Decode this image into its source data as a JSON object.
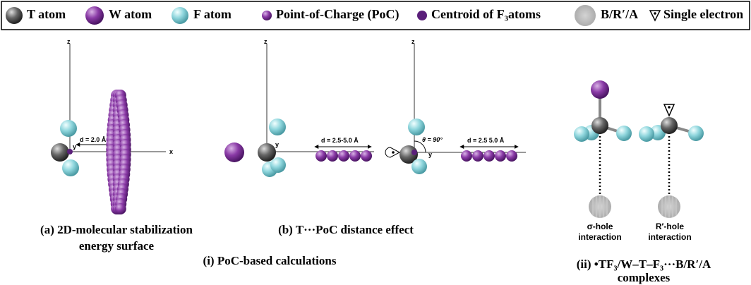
{
  "legend": [
    "T atom",
    "W atom",
    "F atom",
    "Point-of-Charge (PoC)",
    "Centroid of F₃atoms",
    "B/R′/A",
    "Single electron"
  ],
  "panel_a": {
    "axes": [
      "z",
      "y",
      "x"
    ],
    "distance": "d = 2.0 Å",
    "caption": [
      "(a) 2D-molecular stabilization",
      "energy surface"
    ]
  },
  "panel_b1": {
    "axes": [
      "z",
      "y"
    ],
    "distance": "d = 2.5-5.0 Å"
  },
  "panel_b2": {
    "axes": [
      "z",
      "y"
    ],
    "angle": "θ = 90°",
    "distance": "d = 2.5 5.0 Å"
  },
  "panel_b_caption": "(b) T···PoC distance effect",
  "section_i": "(i) PoC-based calculations",
  "panel_ii": {
    "left": [
      "σ-hole",
      "interaction"
    ],
    "right": [
      "R′-hole",
      "interaction"
    ],
    "caption": [
      "(ii) •TF₃/W–T–F₃···B/R′/A",
      "complexes"
    ]
  }
}
